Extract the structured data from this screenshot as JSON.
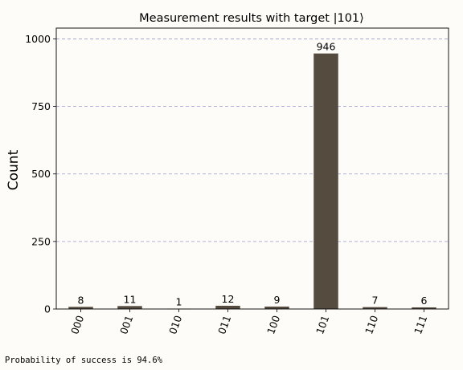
{
  "chart_data": {
    "type": "bar",
    "title": "Measurement results with target |101⟩",
    "xlabel": "",
    "ylabel": "Count",
    "categories": [
      "000",
      "001",
      "010",
      "011",
      "100",
      "101",
      "110",
      "111"
    ],
    "values": [
      8,
      11,
      1,
      12,
      9,
      946,
      7,
      6
    ],
    "ylim": [
      0,
      1040
    ],
    "yticks": [
      0,
      250,
      500,
      750,
      1000
    ],
    "grid": true,
    "bar_color": "#554b3e",
    "grid_color": "#9a9ad0"
  },
  "footer_text": "Probability of success is 94.6%"
}
